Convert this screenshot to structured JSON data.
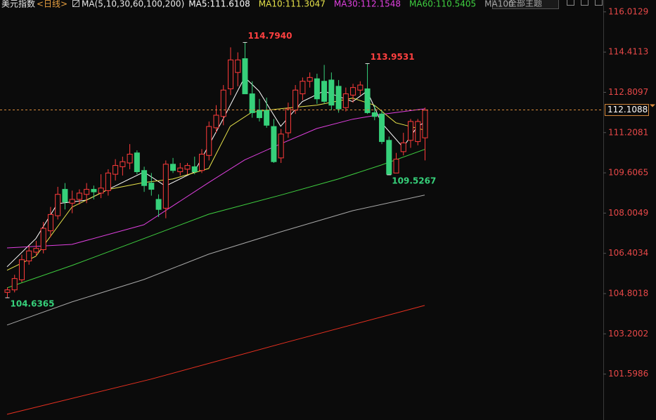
{
  "chart_data": {
    "type": "candlestick",
    "title": "美元指数",
    "period": "<日线>",
    "indicator": "MA(5,10,30,60,100,200)",
    "button": "全部主题",
    "up_color": "#ff3b3b",
    "down_color": "#36d07a",
    "ylim": [
      99.94,
      116.26
    ],
    "yticks": [
      116.0129,
      114.4113,
      112.8097,
      111.2081,
      109.6065,
      108.0049,
      106.4034,
      104.8018,
      103.2002,
      101.5986
    ],
    "last_price": 112.1088,
    "open": [
      104.85,
      104.95,
      105.35,
      106.1,
      106.45,
      106.55,
      107.3,
      107.9,
      108.95,
      108.4,
      108.55,
      108.75,
      108.95,
      108.8,
      108.9,
      109.55,
      109.85,
      110.0,
      110.4,
      109.7,
      109.2,
      108.55,
      108.2,
      109.95,
      109.65,
      109.75,
      109.85,
      109.7,
      110.3,
      111.4,
      111.85,
      112.95,
      113.6,
      114.15,
      112.75,
      112.1,
      112.1,
      111.45,
      110.2,
      111.2,
      112.1,
      112.75,
      113.25,
      113.35,
      113.25,
      113.3,
      113.05,
      112.2,
      112.7,
      112.9,
      112.95,
      112.0,
      111.95,
      110.9,
      109.6,
      110.45,
      110.9,
      110.85,
      111.0
    ],
    "high": [
      105.05,
      105.55,
      106.35,
      106.7,
      106.9,
      107.65,
      108.25,
      109.05,
      109.2,
      108.9,
      108.95,
      109.2,
      109.1,
      109.55,
      109.75,
      110.15,
      110.25,
      110.75,
      110.5,
      109.85,
      109.6,
      108.75,
      110.1,
      110.2,
      110.0,
      110.0,
      110.25,
      110.55,
      111.65,
      112.3,
      113.1,
      114.6,
      114.4,
      114.794,
      113.25,
      112.55,
      112.6,
      111.75,
      111.35,
      112.4,
      113.1,
      113.4,
      113.6,
      113.55,
      113.9,
      113.6,
      113.3,
      113.0,
      113.15,
      113.25,
      113.9531,
      112.3,
      112.1,
      111.05,
      110.4,
      111.2,
      111.75,
      111.75,
      112.2
    ],
    "low": [
      104.6365,
      104.85,
      105.25,
      105.95,
      106.3,
      106.4,
      107.05,
      107.75,
      108.15,
      108.0,
      108.35,
      108.4,
      108.55,
      108.6,
      108.7,
      109.3,
      109.5,
      109.75,
      109.55,
      108.85,
      108.7,
      107.85,
      107.8,
      109.6,
      109.5,
      109.55,
      109.55,
      109.6,
      110.1,
      111.2,
      111.5,
      112.7,
      113.05,
      112.75,
      111.8,
      111.65,
      111.4,
      110.0,
      110.0,
      111.0,
      111.95,
      112.5,
      113.0,
      112.35,
      112.35,
      112.1,
      112.0,
      112.05,
      112.4,
      112.7,
      111.95,
      111.7,
      110.75,
      109.5267,
      109.6,
      110.3,
      110.6,
      110.7,
      110.1
    ],
    "close": [
      104.95,
      105.4,
      106.15,
      106.5,
      106.6,
      107.4,
      107.95,
      108.75,
      108.45,
      108.55,
      108.8,
      108.95,
      108.85,
      109.0,
      109.6,
      109.9,
      110.05,
      110.35,
      109.65,
      109.1,
      108.95,
      108.15,
      109.95,
      109.7,
      109.8,
      109.9,
      109.65,
      110.35,
      111.45,
      111.9,
      112.9,
      114.1,
      114.1,
      112.75,
      112.0,
      111.8,
      111.5,
      110.05,
      111.15,
      112.15,
      112.9,
      113.25,
      113.4,
      112.55,
      112.45,
      112.3,
      112.15,
      112.75,
      113.0,
      113.1,
      112.0,
      111.85,
      110.85,
      109.55,
      110.15,
      110.8,
      111.65,
      111.65,
      112.1
    ],
    "lines": [
      {
        "name": "MA5:111.6108",
        "color": "#ffffff",
        "x": [
          0,
          4,
          7,
          11,
          15,
          19,
          22,
          26,
          30,
          33,
          35,
          38,
          41,
          44,
          48,
          50,
          52,
          55,
          57,
          58
        ],
        "values": [
          105.87,
          106.99,
          108.38,
          108.52,
          109.08,
          109.64,
          109.08,
          109.64,
          111.74,
          113.41,
          112.86,
          111.46,
          112.44,
          112.86,
          112.44,
          112.86,
          111.6,
          110.62,
          111.46,
          111.6108
        ]
      },
      {
        "name": "MA10:111.3047",
        "color": "#e6e24a",
        "x": [
          0,
          4,
          9,
          14,
          19,
          23,
          28,
          31,
          34,
          38,
          43,
          48,
          51,
          54,
          58
        ],
        "values": [
          105.73,
          106.29,
          108.24,
          108.94,
          109.22,
          109.36,
          109.78,
          111.46,
          112.02,
          112.16,
          112.3,
          112.58,
          112.3,
          111.6,
          111.3047
        ]
      },
      {
        "name": "MA30:112.1548",
        "color": "#e040e0",
        "x": [
          0,
          9,
          19,
          28,
          33,
          38,
          43,
          48,
          52,
          58
        ],
        "values": [
          106.62,
          106.76,
          107.54,
          109.22,
          110.12,
          110.76,
          111.37,
          111.74,
          111.93,
          112.1548
        ]
      },
      {
        "name": "MA60:110.5405",
        "color": "#3fd040",
        "x": [
          0,
          9,
          19,
          28,
          38,
          46,
          52,
          58
        ],
        "values": [
          105.03,
          105.92,
          106.99,
          107.96,
          108.72,
          109.36,
          109.92,
          110.5405
        ]
      },
      {
        "name": "MA100",
        "color": "#a8a8a8",
        "x": [
          0,
          9,
          19,
          28,
          38,
          48,
          58
        ],
        "values": [
          103.55,
          104.47,
          105.36,
          106.37,
          107.26,
          108.1,
          108.72
        ]
      },
      {
        "color": "#e83020",
        "x": [
          0,
          20,
          39,
          58
        ],
        "values": [
          100.0,
          101.4,
          102.88,
          104.33
        ]
      }
    ],
    "annotations": [
      {
        "index": 33,
        "value": {
          "value": 114.794,
          "label": "114.7940"
        },
        "color": "#ff4040"
      },
      {
        "index": 50,
        "value": 113.9531,
        "color": "#ff4040"
      },
      {
        "index": 53,
        "value": 109.5267,
        "color": "#36d07a"
      },
      {
        "index": 0,
        "value": 104.6365,
        "color": "#36d07a"
      }
    ]
  }
}
